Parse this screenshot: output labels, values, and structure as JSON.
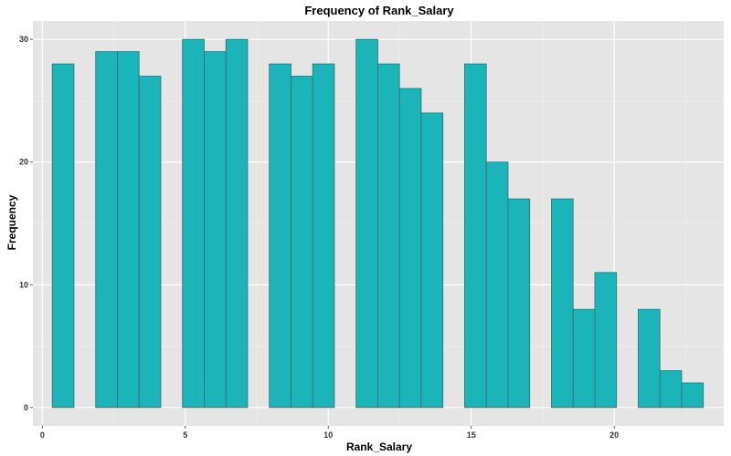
{
  "chart_data": {
    "type": "bar",
    "title": "Frequency of Rank_Salary",
    "xlabel": "Rank_Salary",
    "ylabel": "Frequency",
    "xlim": [
      -0.33,
      23.83
    ],
    "ylim": [
      -1.5,
      31.5
    ],
    "x_ticks": [
      0,
      5,
      10,
      15,
      20
    ],
    "y_ticks": [
      0,
      10,
      20,
      30
    ],
    "bin_width": 0.759,
    "bins": [
      {
        "x0": 0.348,
        "x1": 1.107,
        "count": 28
      },
      {
        "x0": 1.107,
        "x1": 1.866,
        "count": 0
      },
      {
        "x0": 1.866,
        "x1": 2.625,
        "count": 29
      },
      {
        "x0": 2.625,
        "x1": 3.384,
        "count": 29
      },
      {
        "x0": 3.384,
        "x1": 4.143,
        "count": 27
      },
      {
        "x0": 4.143,
        "x1": 4.902,
        "count": 0
      },
      {
        "x0": 4.902,
        "x1": 5.661,
        "count": 30
      },
      {
        "x0": 5.661,
        "x1": 6.42,
        "count": 29
      },
      {
        "x0": 6.42,
        "x1": 7.179,
        "count": 30
      },
      {
        "x0": 7.179,
        "x1": 7.938,
        "count": 0
      },
      {
        "x0": 7.938,
        "x1": 8.697,
        "count": 28
      },
      {
        "x0": 8.697,
        "x1": 9.456,
        "count": 27
      },
      {
        "x0": 9.456,
        "x1": 10.215,
        "count": 28
      },
      {
        "x0": 10.215,
        "x1": 10.974,
        "count": 0
      },
      {
        "x0": 10.974,
        "x1": 11.733,
        "count": 30
      },
      {
        "x0": 11.733,
        "x1": 12.492,
        "count": 28
      },
      {
        "x0": 12.492,
        "x1": 13.251,
        "count": 26
      },
      {
        "x0": 13.251,
        "x1": 14.01,
        "count": 24
      },
      {
        "x0": 14.01,
        "x1": 14.769,
        "count": 0
      },
      {
        "x0": 14.769,
        "x1": 15.528,
        "count": 28
      },
      {
        "x0": 15.528,
        "x1": 16.287,
        "count": 20
      },
      {
        "x0": 16.287,
        "x1": 17.046,
        "count": 17
      },
      {
        "x0": 17.046,
        "x1": 17.805,
        "count": 0
      },
      {
        "x0": 17.805,
        "x1": 18.564,
        "count": 17
      },
      {
        "x0": 18.564,
        "x1": 19.323,
        "count": 8
      },
      {
        "x0": 19.323,
        "x1": 20.082,
        "count": 11
      },
      {
        "x0": 20.082,
        "x1": 20.841,
        "count": 0
      },
      {
        "x0": 20.841,
        "x1": 21.6,
        "count": 8
      },
      {
        "x0": 21.6,
        "x1": 22.359,
        "count": 3
      },
      {
        "x0": 22.359,
        "x1": 23.118,
        "count": 2
      }
    ],
    "grid": true,
    "colors": {
      "bar_fill": "#1ab4b9",
      "bar_stroke": "#3a6a6f",
      "panel_bg": "#e5e5e5",
      "grid_major": "#ffffff",
      "grid_minor": "#f2f2f2"
    }
  }
}
